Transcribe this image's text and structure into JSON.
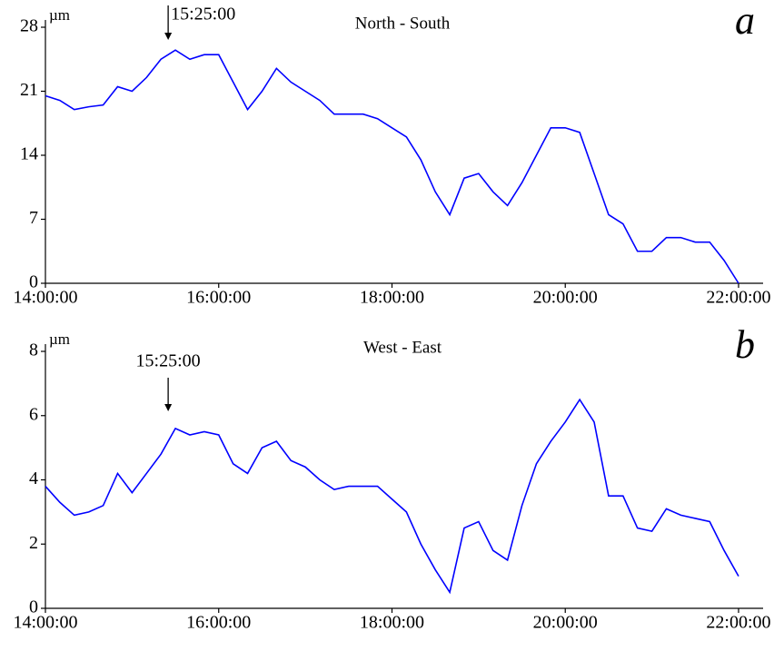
{
  "chart_data": [
    {
      "type": "line",
      "title": "North - South",
      "panel_label": "a",
      "y_label": "µm",
      "x": [
        "14:00:00",
        "14:10:00",
        "14:20:00",
        "14:30:00",
        "14:40:00",
        "14:50:00",
        "15:00:00",
        "15:10:00",
        "15:20:00",
        "15:30:00",
        "15:40:00",
        "15:50:00",
        "16:00:00",
        "16:10:00",
        "16:20:00",
        "16:30:00",
        "16:40:00",
        "16:50:00",
        "17:00:00",
        "17:10:00",
        "17:20:00",
        "17:30:00",
        "17:40:00",
        "17:50:00",
        "18:00:00",
        "18:10:00",
        "18:20:00",
        "18:30:00",
        "18:40:00",
        "18:50:00",
        "19:00:00",
        "19:10:00",
        "19:20:00",
        "19:30:00",
        "19:40:00",
        "19:50:00",
        "20:00:00",
        "20:10:00",
        "20:20:00",
        "20:30:00",
        "20:40:00",
        "20:50:00",
        "21:00:00",
        "21:10:00",
        "21:20:00",
        "21:30:00",
        "21:40:00",
        "21:50:00",
        "22:00:00"
      ],
      "series": [
        {
          "color": "#0000ff",
          "values": [
            20.5,
            20,
            19,
            19.3,
            19.5,
            21.5,
            21,
            22.5,
            24.5,
            25.5,
            24.5,
            25,
            25,
            22,
            19,
            21,
            23.5,
            22,
            21,
            20,
            18.5,
            18.5,
            18.5,
            18,
            17,
            16,
            13.5,
            10,
            7.5,
            11.5,
            12,
            10,
            8.5,
            11,
            14,
            17,
            17,
            16.5,
            12,
            7.5,
            6.5,
            3.5,
            3.5,
            5,
            5,
            4.5,
            4.5,
            2.5,
            0
          ]
        }
      ],
      "xlim": [
        "14:00:00",
        "22:17:00"
      ],
      "xticks": [
        "14:00:00",
        "16:00:00",
        "18:00:00",
        "20:00:00",
        "22:00:00"
      ],
      "ylim": [
        0,
        28
      ],
      "yticks": [
        0,
        7,
        14,
        21,
        28
      ],
      "annotations": [
        {
          "x": "15:25:00",
          "text": "15:25:00"
        }
      ]
    },
    {
      "type": "line",
      "title": "West - East",
      "panel_label": "b",
      "y_label": "µm",
      "x": [
        "14:00:00",
        "14:10:00",
        "14:20:00",
        "14:30:00",
        "14:40:00",
        "14:50:00",
        "15:00:00",
        "15:10:00",
        "15:20:00",
        "15:30:00",
        "15:40:00",
        "15:50:00",
        "16:00:00",
        "16:10:00",
        "16:20:00",
        "16:30:00",
        "16:40:00",
        "16:50:00",
        "17:00:00",
        "17:10:00",
        "17:20:00",
        "17:30:00",
        "17:40:00",
        "17:50:00",
        "18:00:00",
        "18:10:00",
        "18:20:00",
        "18:30:00",
        "18:40:00",
        "18:50:00",
        "19:00:00",
        "19:10:00",
        "19:20:00",
        "19:30:00",
        "19:40:00",
        "19:50:00",
        "20:00:00",
        "20:10:00",
        "20:20:00",
        "20:30:00",
        "20:40:00",
        "20:50:00",
        "21:00:00",
        "21:10:00",
        "21:20:00",
        "21:30:00",
        "21:40:00",
        "21:50:00",
        "22:00:00"
      ],
      "series": [
        {
          "color": "#0000ff",
          "values": [
            3.8,
            3.3,
            2.9,
            3.0,
            3.2,
            4.2,
            3.6,
            4.2,
            4.8,
            5.6,
            5.4,
            5.5,
            5.4,
            4.5,
            4.2,
            5,
            5.2,
            4.6,
            4.4,
            4,
            3.7,
            3.8,
            3.8,
            3.8,
            3.4,
            3.0,
            2.0,
            1.2,
            0.5,
            2.5,
            2.7,
            1.8,
            1.5,
            3.2,
            4.5,
            5.2,
            5.8,
            6.5,
            5.8,
            3.5,
            3.5,
            2.5,
            2.4,
            3.1,
            2.9,
            2.8,
            2.7,
            1.8,
            1.0
          ]
        }
      ],
      "xlim": [
        "14:00:00",
        "22:17:00"
      ],
      "xticks": [
        "14:00:00",
        "16:00:00",
        "18:00:00",
        "20:00:00",
        "22:00:00"
      ],
      "ylim": [
        0,
        8
      ],
      "yticks": [
        0,
        2,
        4,
        6,
        8
      ],
      "annotations": [
        {
          "x": "15:25:00",
          "text": "15:25:00"
        }
      ]
    }
  ]
}
